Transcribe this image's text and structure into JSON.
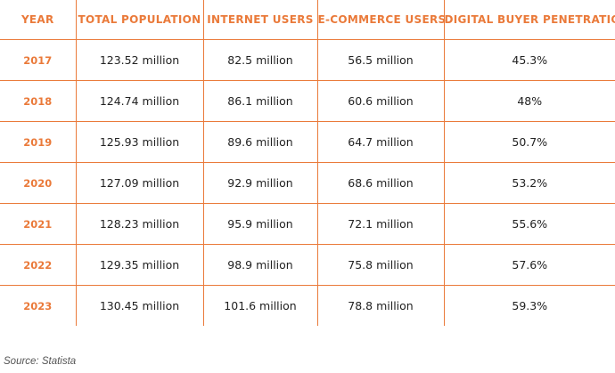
{
  "colors": {
    "accent": "#ea7a3a",
    "text": "#222222",
    "source_text": "#555555"
  },
  "table": {
    "headers": [
      "YEAR",
      "TOTAL POPULATION",
      "INTERNET USERS",
      "E-COMMERCE USERS",
      "DIGITAL BUYER PENETRATION"
    ],
    "rows": [
      [
        "2017",
        "123.52 million",
        "82.5 million",
        "56.5 million",
        "45.3%"
      ],
      [
        "2018",
        "124.74 million",
        "86.1 million",
        "60.6 million",
        "48%"
      ],
      [
        "2019",
        "125.93 million",
        "89.6 million",
        "64.7 million",
        "50.7%"
      ],
      [
        "2020",
        "127.09 million",
        "92.9 million",
        "68.6 million",
        "53.2%"
      ],
      [
        "2021",
        "128.23 million",
        "95.9 million",
        "72.1 million",
        "55.6%"
      ],
      [
        "2022",
        "129.35 million",
        "98.9 million",
        "75.8 million",
        "57.6%"
      ],
      [
        "2023",
        "130.45 million",
        "101.6 million",
        "78.8 million",
        "59.3%"
      ]
    ]
  },
  "source": "Source: Statista"
}
